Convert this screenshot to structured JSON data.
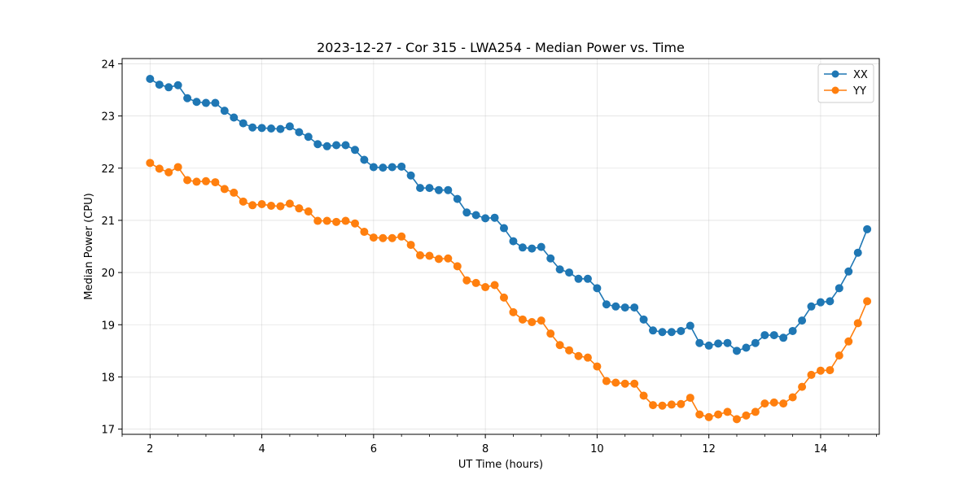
{
  "chart_data": {
    "type": "line",
    "title": "2023-12-27 - Cor 315 - LWA254 - Median Power vs. Time",
    "xlabel": "UT Time (hours)",
    "ylabel": "Median Power (CPU)",
    "xlim": [
      1.5,
      15.05
    ],
    "ylim": [
      16.9,
      24.1
    ],
    "xticks": [
      2,
      4,
      6,
      8,
      10,
      12,
      14
    ],
    "yticks": [
      17,
      18,
      19,
      20,
      21,
      22,
      23,
      24
    ],
    "grid": true,
    "legend_position": "top-right",
    "x": [
      2.0,
      2.167,
      2.333,
      2.5,
      2.667,
      2.833,
      3.0,
      3.167,
      3.333,
      3.5,
      3.667,
      3.833,
      4.0,
      4.167,
      4.333,
      4.5,
      4.667,
      4.833,
      5.0,
      5.167,
      5.333,
      5.5,
      5.667,
      5.833,
      6.0,
      6.167,
      6.333,
      6.5,
      6.667,
      6.833,
      7.0,
      7.167,
      7.333,
      7.5,
      7.667,
      7.833,
      8.0,
      8.167,
      8.333,
      8.5,
      8.667,
      8.833,
      9.0,
      9.167,
      9.333,
      9.5,
      9.667,
      9.833,
      10.0,
      10.167,
      10.333,
      10.5,
      10.667,
      10.833,
      11.0,
      11.167,
      11.333,
      11.5,
      11.667,
      11.833,
      12.0,
      12.167,
      12.333,
      12.5,
      12.667,
      12.833,
      13.0,
      13.167,
      13.333,
      13.5,
      13.667,
      13.833,
      14.0,
      14.167,
      14.333,
      14.5,
      14.667,
      14.833
    ],
    "series": [
      {
        "name": "XX",
        "color": "#1f77b4",
        "values": [
          23.71,
          23.6,
          23.55,
          23.59,
          23.34,
          23.27,
          23.25,
          23.25,
          23.1,
          22.97,
          22.86,
          22.78,
          22.77,
          22.76,
          22.75,
          22.8,
          22.69,
          22.6,
          22.46,
          22.42,
          22.44,
          22.44,
          22.35,
          22.16,
          22.02,
          22.01,
          22.02,
          22.03,
          21.86,
          21.62,
          21.62,
          21.58,
          21.58,
          21.41,
          21.15,
          21.1,
          21.04,
          21.05,
          20.85,
          20.6,
          20.48,
          20.46,
          20.49,
          20.27,
          20.06,
          20.0,
          19.88,
          19.88,
          19.7,
          19.39,
          19.35,
          19.33,
          19.33,
          19.1,
          18.89,
          18.86,
          18.86,
          18.88,
          18.98,
          18.65,
          18.6,
          18.64,
          18.65,
          18.5,
          18.56,
          18.65,
          18.8,
          18.8,
          18.75,
          18.88,
          19.08,
          19.35,
          19.43,
          19.45,
          19.7,
          20.02,
          20.38,
          20.83
        ]
      },
      {
        "name": "YY",
        "color": "#ff7f0e",
        "values": [
          22.1,
          21.99,
          21.92,
          22.02,
          21.77,
          21.74,
          21.75,
          21.73,
          21.6,
          21.53,
          21.36,
          21.29,
          21.31,
          21.28,
          21.27,
          21.32,
          21.23,
          21.17,
          20.99,
          20.99,
          20.97,
          20.99,
          20.94,
          20.78,
          20.67,
          20.66,
          20.66,
          20.69,
          20.53,
          20.33,
          20.32,
          20.26,
          20.27,
          20.12,
          19.85,
          19.8,
          19.72,
          19.76,
          19.52,
          19.24,
          19.1,
          19.05,
          19.08,
          18.83,
          18.61,
          18.51,
          18.4,
          18.37,
          18.2,
          17.92,
          17.89,
          17.87,
          17.87,
          17.64,
          17.46,
          17.45,
          17.47,
          17.48,
          17.6,
          17.28,
          17.23,
          17.28,
          17.33,
          17.19,
          17.26,
          17.33,
          17.49,
          17.51,
          17.49,
          17.61,
          17.81,
          18.04,
          18.12,
          18.13,
          18.41,
          18.68,
          19.03,
          19.45
        ]
      }
    ]
  }
}
